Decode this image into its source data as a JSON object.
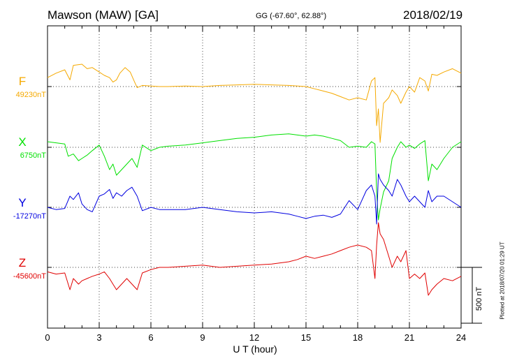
{
  "header": {
    "station": "Mawson (MAW)  [GA]",
    "coords": "GG (-67.60°,  62.88°)",
    "date": "2018/02/19"
  },
  "footer": {
    "plotted": "Plotted at 2018/07/20 01:29 UT"
  },
  "chart_data": {
    "type": "line",
    "xlabel": "U T (hour)",
    "xlim": [
      0,
      24
    ],
    "xticks": [
      "0",
      "3",
      "6",
      "9",
      "12",
      "15",
      "18",
      "21",
      "24"
    ],
    "scale_bar": {
      "label": "500 nT",
      "value_nT": 500
    },
    "grid": true,
    "series": [
      {
        "name": "F",
        "baseline_label": "49230nT",
        "color": "#f5a900",
        "x": [
          0,
          0.5,
          1,
          1.3,
          1.5,
          2,
          2.3,
          2.6,
          3,
          3.3,
          3.6,
          3.8,
          4,
          4.2,
          4.5,
          4.8,
          5,
          5.2,
          5.5,
          6,
          6.5,
          7,
          8,
          9,
          10,
          11,
          12,
          13,
          14,
          15,
          15.5,
          16,
          16.5,
          17,
          17.5,
          18,
          18.5,
          18.8,
          19,
          19.1,
          19.2,
          19.3,
          19.5,
          19.8,
          20,
          20.3,
          20.5,
          20.8,
          21,
          21.3,
          21.6,
          21.9,
          22.1,
          22.3,
          22.6,
          23,
          23.5,
          24
        ],
        "values": [
          80,
          120,
          150,
          60,
          190,
          200,
          160,
          170,
          130,
          100,
          80,
          40,
          60,
          120,
          170,
          130,
          60,
          -10,
          10,
          5,
          0,
          0,
          5,
          0,
          10,
          15,
          20,
          15,
          10,
          0,
          -20,
          -40,
          -60,
          -90,
          -120,
          -100,
          -120,
          50,
          80,
          -350,
          -200,
          -500,
          -150,
          -100,
          -30,
          -80,
          -150,
          -50,
          0,
          -50,
          80,
          50,
          -40,
          110,
          100,
          130,
          160,
          120
        ]
      },
      {
        "name": "X",
        "baseline_label": "6750nT",
        "color": "#00e000",
        "x": [
          0,
          0.5,
          1,
          1.2,
          1.5,
          1.8,
          2,
          2.3,
          2.6,
          3,
          3.3,
          3.6,
          3.8,
          4,
          4.3,
          4.6,
          4.9,
          5.2,
          5.5,
          6,
          6.5,
          7,
          8,
          9,
          10,
          11,
          12,
          13,
          14,
          15,
          15.5,
          16,
          16.5,
          17,
          17.5,
          18,
          18.5,
          18.8,
          19,
          19.1,
          19.2,
          19.3,
          19.5,
          19.8,
          20,
          20.3,
          20.5,
          20.8,
          21,
          21.3,
          21.6,
          21.9,
          22.1,
          22.3,
          22.6,
          23,
          23.5,
          24
        ],
        "values": [
          50,
          40,
          30,
          -80,
          -60,
          -120,
          -100,
          -70,
          -30,
          20,
          -80,
          -200,
          -150,
          -250,
          -200,
          -150,
          -100,
          -180,
          20,
          -30,
          0,
          10,
          20,
          40,
          60,
          80,
          90,
          110,
          120,
          100,
          110,
          100,
          80,
          60,
          0,
          10,
          0,
          50,
          30,
          -400,
          -650,
          -550,
          -400,
          -300,
          -100,
          0,
          50,
          0,
          20,
          -10,
          30,
          60,
          -300,
          -150,
          -200,
          -100,
          0,
          50
        ]
      },
      {
        "name": "Y",
        "baseline_label": "-17270nT",
        "color": "#0000e0",
        "x": [
          0,
          0.5,
          1,
          1.3,
          1.5,
          1.8,
          2,
          2.3,
          2.6,
          3,
          3.3,
          3.6,
          3.8,
          4,
          4.3,
          4.6,
          4.9,
          5.2,
          5.5,
          6,
          6.5,
          7,
          8,
          9,
          10,
          11,
          12,
          13,
          14,
          14.5,
          15,
          15.5,
          16,
          16.5,
          17,
          17.5,
          18,
          18.5,
          18.8,
          19,
          19.1,
          19.2,
          19.3,
          19.5,
          19.8,
          20,
          20.3,
          20.5,
          20.8,
          21,
          21.3,
          21.6,
          21.9,
          22.1,
          22.3,
          22.6,
          23,
          23.5,
          24
        ],
        "values": [
          0,
          -20,
          -10,
          100,
          70,
          130,
          30,
          -20,
          -40,
          100,
          120,
          160,
          80,
          130,
          100,
          150,
          180,
          100,
          -30,
          0,
          -20,
          -20,
          -20,
          0,
          -20,
          -40,
          -50,
          -40,
          -60,
          -80,
          -100,
          -80,
          -70,
          -90,
          -60,
          60,
          -20,
          150,
          200,
          100,
          -150,
          300,
          250,
          200,
          150,
          100,
          250,
          200,
          100,
          50,
          100,
          50,
          0,
          150,
          50,
          100,
          100,
          50,
          0
        ]
      },
      {
        "name": "Z",
        "baseline_label": "-45600nT",
        "color": "#e00000",
        "x": [
          0,
          0.5,
          1,
          1.3,
          1.5,
          1.8,
          2,
          2.3,
          2.6,
          3,
          3.3,
          3.6,
          3.8,
          4,
          4.3,
          4.6,
          4.9,
          5.2,
          5.5,
          6,
          6.5,
          7,
          8,
          9,
          10,
          11,
          12,
          13,
          14,
          14.5,
          15,
          15.5,
          16,
          16.5,
          17,
          17.5,
          18,
          18.5,
          18.8,
          19,
          19.1,
          19.2,
          19.3,
          19.5,
          19.8,
          20,
          20.3,
          20.5,
          20.8,
          21,
          21.3,
          21.6,
          21.9,
          22.1,
          22.3,
          22.6,
          23,
          23.5,
          24
        ],
        "values": [
          -40,
          -60,
          -50,
          -200,
          -100,
          -150,
          -120,
          -100,
          -80,
          -60,
          -40,
          -100,
          -150,
          -200,
          -150,
          -100,
          -150,
          -200,
          -50,
          -20,
          0,
          0,
          10,
          20,
          0,
          10,
          20,
          30,
          50,
          70,
          100,
          80,
          100,
          120,
          150,
          180,
          200,
          180,
          150,
          -100,
          200,
          400,
          300,
          250,
          100,
          0,
          100,
          50,
          150,
          -100,
          -60,
          -100,
          -50,
          -250,
          -200,
          -150,
          -100,
          -120,
          -80
        ]
      }
    ]
  }
}
